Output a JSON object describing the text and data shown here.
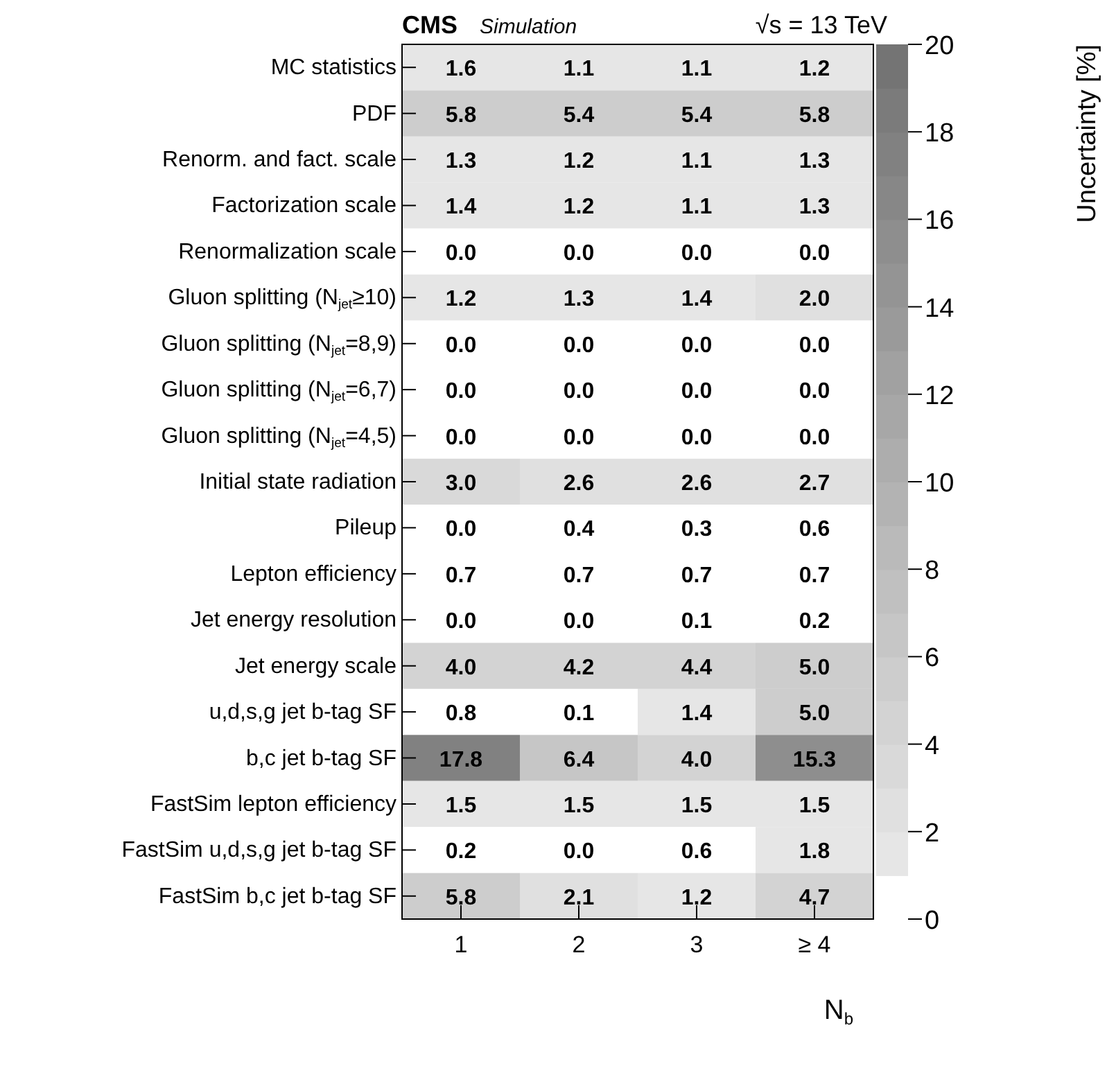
{
  "chart_data": {
    "type": "heatmap",
    "title": "CMS",
    "subtitle": "Simulation",
    "annotations": [
      "√s = 13 TeV"
    ],
    "xlabel": "N$_{b}$",
    "clabel": "Uncertainty [%]",
    "categories": [
      "1",
      "2",
      "3",
      "≥ 4"
    ],
    "y_categories": [
      "MC statistics",
      "PDF",
      "Renorm. and fact. scale",
      "Factorization scale",
      "Renormalization scale",
      "Gluon splitting (N$_{jet}$≥10)",
      "Gluon splitting (N$_{jet}$=8,9)",
      "Gluon splitting (N$_{jet}$=6,7)",
      "Gluon splitting (N$_{jet}$=4,5)",
      "Initial state radiation",
      "Pileup",
      "Lepton efficiency",
      "Jet energy resolution",
      "Jet energy scale",
      "u,d,s,g jet b-tag SF",
      "b,c jet b-tag SF",
      "FastSim lepton efficiency",
      "FastSim u,d,s,g jet b-tag SF",
      "FastSim b,c jet b-tag SF"
    ],
    "cells": [
      [
        1.6,
        1.1,
        1.1,
        1.2
      ],
      [
        5.8,
        5.4,
        5.4,
        5.8
      ],
      [
        1.3,
        1.2,
        1.1,
        1.3
      ],
      [
        1.4,
        1.2,
        1.1,
        1.3
      ],
      [
        0.0,
        0.0,
        0.0,
        0.0
      ],
      [
        1.2,
        1.3,
        1.4,
        2.0
      ],
      [
        0.0,
        0.0,
        0.0,
        0.0
      ],
      [
        0.0,
        0.0,
        0.0,
        0.0
      ],
      [
        0.0,
        0.0,
        0.0,
        0.0
      ],
      [
        3.0,
        2.6,
        2.6,
        2.7
      ],
      [
        0.0,
        0.4,
        0.3,
        0.6
      ],
      [
        0.7,
        0.7,
        0.7,
        0.7
      ],
      [
        0.0,
        0.0,
        0.1,
        0.2
      ],
      [
        4.0,
        4.2,
        4.4,
        5.0
      ],
      [
        0.8,
        0.1,
        1.4,
        5.0
      ],
      [
        17.8,
        6.4,
        4.0,
        15.3
      ],
      [
        1.5,
        1.5,
        1.5,
        1.5
      ],
      [
        0.2,
        0.0,
        0.6,
        1.8
      ],
      [
        5.8,
        2.1,
        1.2,
        4.7
      ]
    ],
    "cell_labels": [
      [
        "1.6",
        "1.1",
        "1.1",
        "1.2"
      ],
      [
        "5.8",
        "5.4",
        "5.4",
        "5.8"
      ],
      [
        "1.3",
        "1.2",
        "1.1",
        "1.3"
      ],
      [
        "1.4",
        "1.2",
        "1.1",
        "1.3"
      ],
      [
        "0.0",
        "0.0",
        "0.0",
        "0.0"
      ],
      [
        "1.2",
        "1.3",
        "1.4",
        "2.0"
      ],
      [
        "0.0",
        "0.0",
        "0.0",
        "0.0"
      ],
      [
        "0.0",
        "0.0",
        "0.0",
        "0.0"
      ],
      [
        "0.0",
        "0.0",
        "0.0",
        "0.0"
      ],
      [
        "3.0",
        "2.6",
        "2.6",
        "2.7"
      ],
      [
        "0.0",
        "0.4",
        "0.3",
        "0.6"
      ],
      [
        "0.7",
        "0.7",
        "0.7",
        "0.7"
      ],
      [
        "0.0",
        "0.0",
        "0.1",
        "0.2"
      ],
      [
        "4.0",
        "4.2",
        "4.4",
        "5.0"
      ],
      [
        "0.8",
        "0.1",
        "1.4",
        "5.0"
      ],
      [
        "17.8",
        "6.4",
        "4.0",
        "15.3"
      ],
      [
        "1.5",
        "1.5",
        "1.5",
        "1.5"
      ],
      [
        "0.2",
        "0.0",
        "0.6",
        "1.8"
      ],
      [
        "5.8",
        "2.1",
        "1.2",
        "4.7"
      ]
    ],
    "clim": [
      0,
      20
    ],
    "cticks": [
      0,
      2,
      4,
      6,
      8,
      10,
      12,
      14,
      16,
      18,
      20
    ]
  }
}
